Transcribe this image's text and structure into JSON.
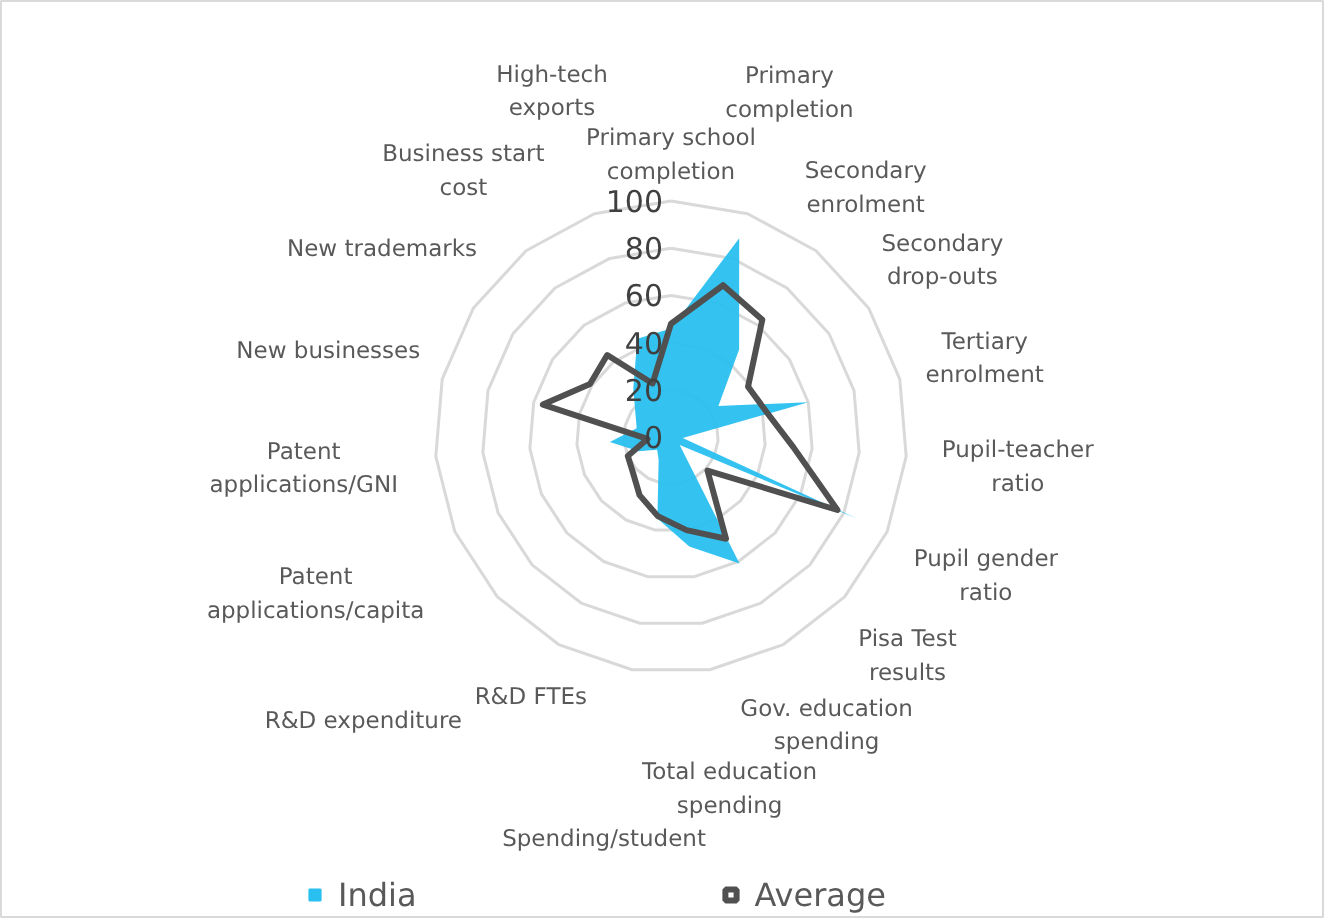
{
  "chart_data": {
    "type": "radar",
    "categories": [
      "Primary school completion",
      "Primary completion",
      "Secondary enrolment",
      "Secondary drop-outs",
      "Tertiary enrolment",
      "Pupil-teacher ratio",
      "Pupil gender ratio",
      "Pisa Test results",
      "Gov. education spending",
      "Total education spending",
      "Spending/student",
      "R&D FTEs",
      "R&D expenditure",
      "Patent applications/capita",
      "Patent applications/GNI",
      "New businesses",
      "New trademarks",
      "Business start cost",
      "High-tech exports"
    ],
    "series": [
      {
        "name": "India",
        "color": "#29c0f0",
        "type": "area",
        "values": [
          46,
          89,
          47,
          24,
          60,
          5,
          86,
          5,
          61,
          47,
          35,
          11,
          8,
          15,
          26,
          15,
          18,
          26,
          44
        ]
      },
      {
        "name": "Average",
        "color": "#505050",
        "values": [
          48,
          68,
          63,
          39,
          42,
          52,
          77,
          21,
          49,
          40,
          34,
          28,
          22,
          20,
          10,
          56,
          41,
          44,
          24
        ]
      }
    ],
    "ylim": [
      0,
      100
    ],
    "yticks": [
      0,
      20,
      40,
      60,
      80,
      100
    ],
    "grid": true,
    "legend": "bottom"
  }
}
